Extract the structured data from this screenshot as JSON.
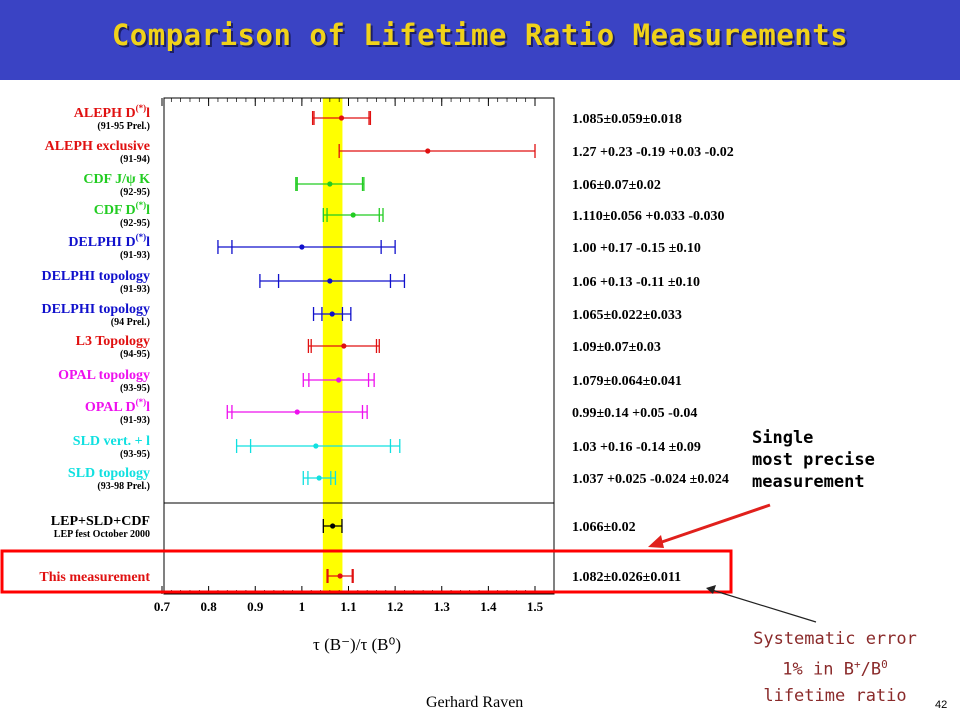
{
  "title": "Comparison of Lifetime Ratio Measurements",
  "annotation_lines": [
    "Single",
    "most precise",
    "measurement"
  ],
  "systematic_note": {
    "line1": "Systematic error",
    "line2_prefix": "1% in B",
    "line2_sup1": "+",
    "line2_mid": "/B",
    "line2_sup2": "0",
    "line3": "lifetime ratio"
  },
  "author": "Gerhard Raven",
  "page_number": "42",
  "colors": {
    "title_bg": "#3a43c4",
    "title_text": "#f0d21a",
    "band": "#ffff00",
    "highlight_box": "#ff0000",
    "arrow": "#e0201c",
    "note_text": "#8a2a2a"
  },
  "chart_data": {
    "type": "scatter",
    "xlabel": "τ (B⁻)/τ (B⁰)",
    "xlim": [
      0.7,
      1.5
    ],
    "x_ticks": [
      "0.7",
      "0.8",
      "0.9",
      "1",
      "1.1",
      "1.2",
      "1.3",
      "1.4",
      "1.5"
    ],
    "band": {
      "low": 1.045,
      "high": 1.087
    },
    "measurements": [
      {
        "name": "ALEPH D(*)l",
        "sub": "(91-95 Prel.)",
        "color": "#e01010",
        "value": 1.085,
        "stat": [
          0.059,
          0.059
        ],
        "tot": [
          0.062,
          0.062
        ],
        "result": "1.085±0.059±0.018"
      },
      {
        "name": "ALEPH exclusive",
        "sub": "(91-94)",
        "color": "#e01010",
        "value": 1.27,
        "stat": [
          0.19,
          0.23
        ],
        "tot": [
          0.19,
          0.23
        ],
        "result": "1.27 +0.23 -0.19 +0.03 -0.02"
      },
      {
        "name": "CDF J/ψ K",
        "sub": "(92-95)",
        "color": "#22cc22",
        "value": 1.06,
        "stat": [
          0.07,
          0.07
        ],
        "tot": [
          0.073,
          0.073
        ],
        "result": "1.06±0.07±0.02"
      },
      {
        "name": "CDF D(*)l",
        "sub": "(92-95)",
        "color": "#22cc22",
        "value": 1.11,
        "stat": [
          0.056,
          0.056
        ],
        "tot": [
          0.064,
          0.064
        ],
        "result": "1.110±0.056 +0.033 -0.030"
      },
      {
        "name": "DELPHI D(*)l",
        "sub": "(91-93)",
        "color": "#1010cc",
        "value": 1.0,
        "stat": [
          0.15,
          0.17
        ],
        "tot": [
          0.18,
          0.2
        ],
        "result": "1.00 +0.17 -0.15 ±0.10"
      },
      {
        "name": "DELPHI topology",
        "sub": "(91-93)",
        "color": "#1010cc",
        "value": 1.06,
        "stat": [
          0.11,
          0.13
        ],
        "tot": [
          0.15,
          0.16
        ],
        "result": "1.06 +0.13 -0.11 ±0.10"
      },
      {
        "name": "DELPHI topology",
        "sub": "(94 Prel.)",
        "color": "#1010cc",
        "value": 1.065,
        "stat": [
          0.022,
          0.022
        ],
        "tot": [
          0.04,
          0.04
        ],
        "result": "1.065±0.022±0.033"
      },
      {
        "name": "L3 Topology",
        "sub": "(94-95)",
        "color": "#e01010",
        "value": 1.09,
        "stat": [
          0.07,
          0.07
        ],
        "tot": [
          0.076,
          0.076
        ],
        "result": "1.09±0.07±0.03"
      },
      {
        "name": "OPAL topology",
        "sub": "(93-95)",
        "color": "#ee10ee",
        "value": 1.079,
        "stat": [
          0.064,
          0.064
        ],
        "tot": [
          0.076,
          0.076
        ],
        "result": "1.079±0.064±0.041"
      },
      {
        "name": "OPAL D(*)l",
        "sub": "(91-93)",
        "color": "#ee10ee",
        "value": 0.99,
        "stat": [
          0.14,
          0.14
        ],
        "tot": [
          0.15,
          0.15
        ],
        "result": "0.99±0.14 +0.05 -0.04"
      },
      {
        "name": "SLD vert. + l",
        "sub": "(93-95)",
        "color": "#10e0e0",
        "value": 1.03,
        "stat": [
          0.14,
          0.16
        ],
        "tot": [
          0.17,
          0.18
        ],
        "result": "1.03 +0.16 -0.14 ±0.09"
      },
      {
        "name": "SLD topology",
        "sub": "(93-98 Prel.)",
        "color": "#10e0e0",
        "value": 1.037,
        "stat": [
          0.024,
          0.025
        ],
        "tot": [
          0.034,
          0.035
        ],
        "result": "1.037 +0.025 -0.024 ±0.024"
      },
      {
        "name": "LEP+SLD+CDF",
        "sub": "LEP fest October 2000",
        "color": "#000000",
        "value": 1.066,
        "stat": [
          0.02,
          0.02
        ],
        "tot": [
          0.02,
          0.02
        ],
        "result": "1.066±0.02"
      },
      {
        "name": "This measurement",
        "sub": "",
        "color": "#e01010",
        "value": 1.082,
        "stat": [
          0.026,
          0.026
        ],
        "tot": [
          0.028,
          0.028
        ],
        "result": "1.082±0.026±0.011"
      }
    ]
  }
}
